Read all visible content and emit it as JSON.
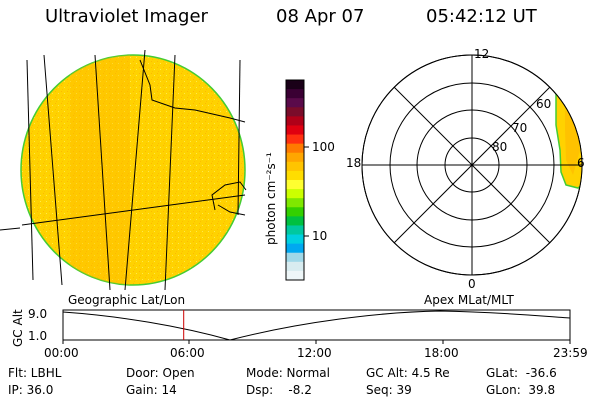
{
  "header": {
    "title": "Ultraviolet Imager",
    "date": "08 Apr 07",
    "time": "05:42:12 UT"
  },
  "colorbar": {
    "unit_label": "photon cm⁻²s⁻¹",
    "ticks": [
      "100",
      "10"
    ],
    "colors": [
      "#1a0018",
      "#3a0033",
      "#5a0a4a",
      "#7a0c2a",
      "#b00018",
      "#e00010",
      "#ff3010",
      "#ff7a00",
      "#ffa600",
      "#ffc400",
      "#ffdd00",
      "#ffff30",
      "#ccff00",
      "#7fe800",
      "#33d000",
      "#00c040",
      "#00c8a0",
      "#00d0e0",
      "#00a8f0",
      "#a0d8e8",
      "#d8ecf0",
      "#eef6f8"
    ]
  },
  "left_panel": {
    "title": "Geographic Lat/Lon",
    "fill_color": "#ffd400"
  },
  "right_panel": {
    "title": "Apex MLat/MLT",
    "mlt_labels": {
      "top": "12",
      "left": "18",
      "bottom": "0",
      "right": "6"
    },
    "lat_labels": [
      "60",
      "70",
      "80"
    ]
  },
  "timeline": {
    "ylabel": "GC Alt",
    "y_ticks": [
      "9.0",
      "1.0"
    ],
    "x_ticks": [
      "00:00",
      "06:00",
      "12:00",
      "18:00",
      "23:59"
    ],
    "current_time_fraction": 0.238,
    "marker_color": "#cc0000"
  },
  "status": {
    "flt": "Flt: LBHL",
    "ip": "IP: 36.0",
    "door": "Door: Open",
    "gain": "Gain: 14",
    "mode": "Mode: Normal",
    "dsp": "Dsp:    -8.2",
    "gc_alt": "GC Alt: 4.5 Re",
    "seq": "Seq: 39",
    "glat": "GLat:  -36.6",
    "glon": "GLon:  39.8"
  }
}
